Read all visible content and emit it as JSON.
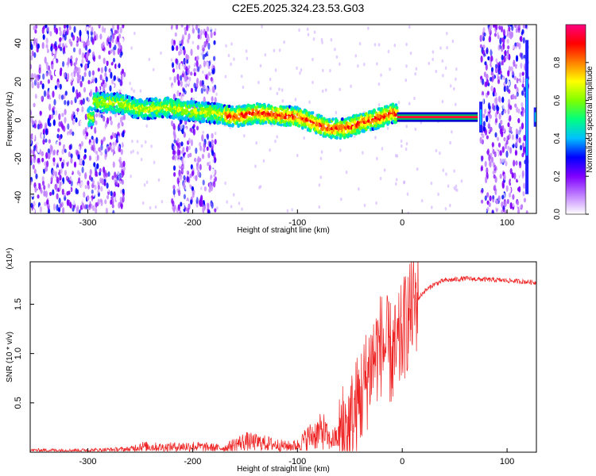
{
  "title": "C2E5.2025.324.23.53.G03",
  "chart_data": [
    {
      "type": "heatmap",
      "xlabel": "Height of straight line (km)",
      "ylabel": "Frequency (Hz)",
      "xlim": [
        -355,
        128
      ],
      "ylim": [
        -50,
        48
      ],
      "x_ticks": [
        -300,
        -200,
        -100,
        0,
        100
      ],
      "y_ticks": [
        -40,
        -20,
        0,
        20,
        40
      ],
      "colorbar": {
        "label": "Normalized spectral amplitude",
        "range": [
          0,
          1
        ],
        "ticks": [
          "0.0",
          "0.2",
          "0.4",
          "0.6",
          "0.8"
        ],
        "colors": [
          "#ffffff",
          "#c080ff",
          "#8000ff",
          "#0000ff",
          "#00c0ff",
          "#00ff80",
          "#80ff00",
          "#ffff00",
          "#ff8000",
          "#ff0000",
          "#ff0080"
        ]
      },
      "noise_regions_km": [
        [
          -355,
          -265
        ],
        [
          -220,
          -178
        ],
        [
          75,
          120
        ]
      ],
      "ridge_path": {
        "x": [
          -295,
          -270,
          -250,
          -225,
          -200,
          -180,
          -160,
          -140,
          -120,
          -100,
          -85,
          -70,
          -55,
          -40,
          -25,
          -10,
          0,
          70
        ],
        "y": [
          8,
          7,
          4,
          5,
          3,
          2,
          0,
          2,
          1,
          0,
          -3,
          -6,
          -6,
          -3,
          -1,
          2,
          0,
          0
        ]
      },
      "grid": false,
      "legend": "colorbar-right"
    },
    {
      "type": "line",
      "xlabel": "Height of straight line (km)",
      "ylabel": "SNR (10 * v/v)",
      "y_multiplier": "(x10⁴)",
      "xlim": [
        -355,
        128
      ],
      "ylim": [
        0,
        1.93
      ],
      "x_ticks": [
        -300,
        -200,
        -100,
        0,
        100
      ],
      "y_ticks": [
        "0.5",
        "1.0",
        "1.5"
      ],
      "y_tick_values": [
        0.5,
        1.0,
        1.5
      ],
      "color": "#ee2222",
      "series": [
        {
          "x": [
            -355,
            -300,
            -260,
            -250,
            -230,
            -200,
            -170,
            -160,
            -150,
            -130,
            -110,
            -100,
            -90,
            -75,
            -70,
            -60,
            -50,
            -45,
            -40,
            -35,
            -30,
            -25,
            -20,
            -15,
            -10,
            -5,
            0,
            5,
            10,
            20,
            30,
            40,
            50,
            60,
            80,
            100,
            128
          ],
          "y": [
            0.02,
            0.02,
            0.03,
            0.06,
            0.05,
            0.06,
            0.04,
            0.08,
            0.11,
            0.09,
            0.06,
            0.07,
            0.15,
            0.22,
            0.12,
            0.15,
            0.25,
            0.4,
            0.55,
            0.7,
            0.9,
            1.0,
            1.1,
            1.05,
            0.98,
            1.0,
            1.2,
            1.35,
            1.48,
            1.62,
            1.7,
            1.74,
            1.75,
            1.76,
            1.75,
            1.74,
            1.72
          ]
        }
      ],
      "grid": false
    }
  ]
}
